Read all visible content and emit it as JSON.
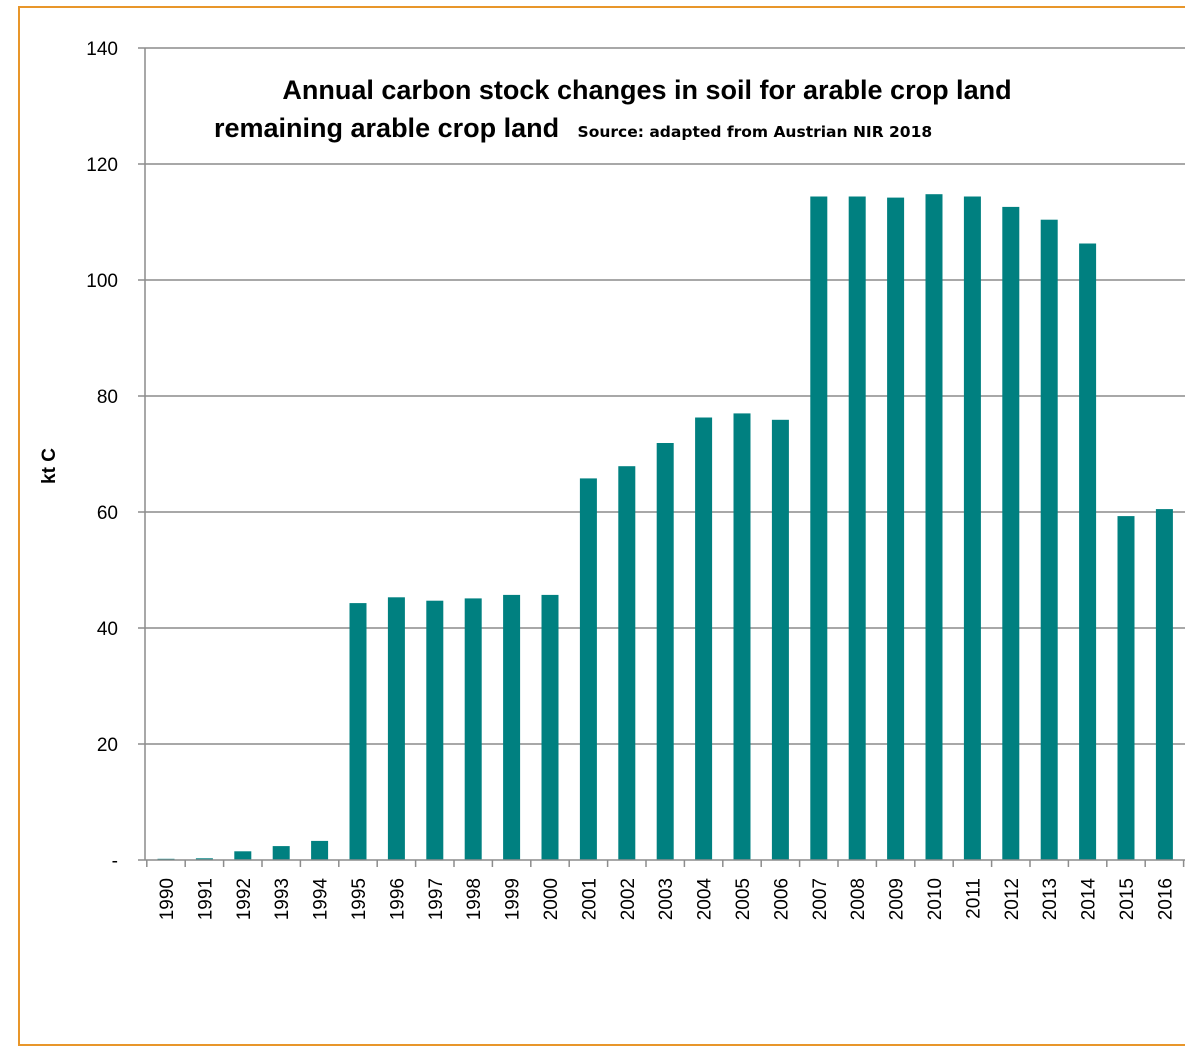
{
  "chart_data": {
    "type": "bar",
    "title_line1": "Annual carbon stock changes in soil for arable crop land",
    "title_line2": "remaining arable crop land",
    "subtitle": "Source: adapted from Austrian NIR 2018",
    "xlabel": "",
    "ylabel": "kt C",
    "ylim": [
      0,
      140
    ],
    "yticks": [
      0,
      20,
      40,
      60,
      80,
      100,
      120,
      140
    ],
    "ytick_labels": [
      "-",
      "20",
      "40",
      "60",
      "80",
      "100",
      "120",
      "140"
    ],
    "grid": true,
    "bar_color": "#008080",
    "categories": [
      "1990",
      "1991",
      "1992",
      "1993",
      "1994",
      "1995",
      "1996",
      "1997",
      "1998",
      "1999",
      "2000",
      "2001",
      "2002",
      "2003",
      "2004",
      "2005",
      "2006",
      "2007",
      "2008",
      "2009",
      "2010",
      "2011",
      "2012",
      "2013",
      "2014",
      "2015",
      "2016"
    ],
    "values": [
      0.2,
      0.3,
      1.5,
      2.4,
      3.3,
      44.3,
      45.3,
      44.7,
      45.1,
      45.7,
      45.7,
      65.8,
      67.9,
      71.9,
      76.3,
      77.0,
      75.9,
      114.4,
      114.4,
      114.2,
      114.8,
      114.4,
      112.6,
      110.4,
      106.3,
      59.3,
      60.5
    ]
  }
}
